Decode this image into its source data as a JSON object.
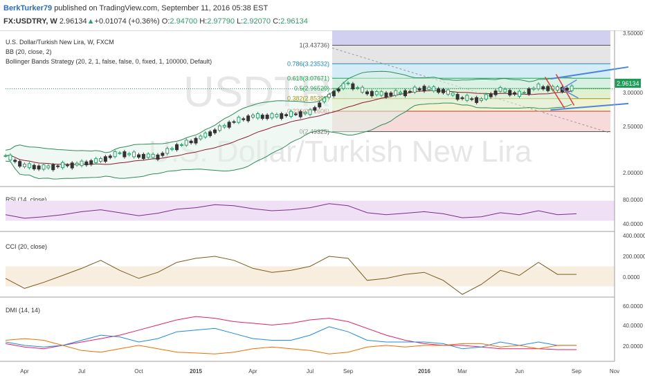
{
  "header": {
    "user": "BerkTurker79",
    "published": "published on TradingView.com, September 11, 2016 05:38 EST",
    "symbol": "FX:USDTRY, W",
    "last": "2.96134",
    "change_arrow": "▲",
    "change": "+0.01074 (+0.36%)",
    "o_label": "O:",
    "o_val": "2.94700",
    "h_label": "H:",
    "h_val": "2.97790",
    "l_label": "L:",
    "l_val": "2.92070",
    "c_label": "C:",
    "c_val": "2.96134"
  },
  "main": {
    "title": "U.S. Dollar/Turkish New Lira, W, FXCM",
    "ind1": "BB (20, close, 2)",
    "ind2": "Bollinger Bands Strategy (20, 2, 1, false, false, 0, fixed, 1, 100000, Default)",
    "watermark1": "USDTRY, W",
    "watermark2": "U.S. Dollar/Turkish New Lira",
    "price_tag": "2.96134",
    "yticks": [
      "3.50000",
      "3.00000",
      "2.50000",
      "2.00000"
    ],
    "fib": [
      {
        "label": "1(3.43736)",
        "color": "#555555"
      },
      {
        "label": "0.786(3.23532)",
        "color": "#1e88b4"
      },
      {
        "label": "0.618(3.07671)",
        "color": "#1ea64c"
      },
      {
        "label": "0.5(2.96520)",
        "color": "#1ea64c"
      },
      {
        "label": "0.382(2.85390)",
        "color": "#9a9a10"
      },
      {
        "label": "0.236(2.71606)",
        "color": "#c0392b"
      },
      {
        "label": "0(2.49325)",
        "color": "#555555"
      }
    ]
  },
  "rsi": {
    "title": "RSI (14, close)",
    "yticks": [
      "80.0000",
      "40.0000"
    ]
  },
  "cci": {
    "title": "CCI (20, close)",
    "yticks": [
      "400.0000",
      "200.0000",
      "0.0000"
    ]
  },
  "dmi": {
    "title": "DMI (14, 14)",
    "yticks": [
      "60.0000",
      "40.0000",
      "20.0000"
    ]
  },
  "xaxis": {
    "labels": [
      "Apr",
      "Jul",
      "Oct",
      "2015",
      "Apr",
      "Jul",
      "Sep",
      "2016",
      "Mar",
      "Jun",
      "Sep",
      "Nov"
    ]
  },
  "colors": {
    "bull": "#26a269",
    "bear": "#333333",
    "bb_upper": "#2e8b57",
    "bb_basis": "#8b1a2a",
    "rsi": "#7b2a8c",
    "cci": "#7a5a1e",
    "dmi_adx": "#e91e63",
    "dmi_plus": "#1e88e5",
    "dmi_minus": "#ef6c00"
  },
  "chart_data": {
    "type": "candlestick",
    "timeframe": "W",
    "x_range": [
      "2014-03",
      "2016-11"
    ],
    "ylim_price": [
      1.9,
      3.6
    ],
    "price_close_monthly": {
      "x": [
        "2014-03",
        "2014-04",
        "2014-05",
        "2014-06",
        "2014-07",
        "2014-08",
        "2014-09",
        "2014-10",
        "2014-11",
        "2014-12",
        "2015-01",
        "2015-02",
        "2015-03",
        "2015-04",
        "2015-05",
        "2015-06",
        "2015-07",
        "2015-08",
        "2015-09",
        "2015-10",
        "2015-11",
        "2015-12",
        "2016-01",
        "2016-02",
        "2016-03",
        "2016-04",
        "2016-05",
        "2016-06",
        "2016-07",
        "2016-08",
        "2016-09"
      ],
      "close": [
        2.23,
        2.12,
        2.1,
        2.12,
        2.14,
        2.18,
        2.26,
        2.23,
        2.22,
        2.33,
        2.4,
        2.5,
        2.6,
        2.66,
        2.66,
        2.68,
        2.7,
        2.88,
        3.02,
        2.92,
        2.9,
        2.92,
        2.97,
        2.94,
        2.86,
        2.84,
        2.95,
        2.9,
        2.98,
        2.96,
        2.96
      ]
    },
    "fibonacci": {
      "levels": [
        1,
        0.786,
        0.618,
        0.5,
        0.382,
        0.236,
        0
      ],
      "prices": [
        3.43736,
        3.23532,
        3.07671,
        2.9652,
        2.8539,
        2.71606,
        2.49325
      ]
    },
    "rsi": {
      "ylim": [
        20,
        100
      ],
      "band": [
        30,
        70
      ],
      "values": [
        52,
        45,
        48,
        52,
        58,
        62,
        56,
        50,
        55,
        63,
        66,
        72,
        70,
        64,
        60,
        62,
        66,
        74,
        70,
        56,
        52,
        55,
        58,
        54,
        46,
        48,
        56,
        52,
        60,
        52,
        54
      ]
    },
    "cci": {
      "ylim": [
        -200,
        400
      ],
      "band": [
        -100,
        100
      ],
      "values": [
        -20,
        -120,
        -60,
        10,
        80,
        160,
        60,
        -20,
        40,
        140,
        180,
        200,
        160,
        80,
        40,
        60,
        100,
        200,
        180,
        -40,
        -20,
        20,
        40,
        -40,
        -180,
        -80,
        60,
        10,
        140,
        20,
        20
      ]
    },
    "dmi": {
      "ylim": [
        0,
        70
      ],
      "adx": [
        20,
        16,
        14,
        18,
        22,
        26,
        30,
        36,
        42,
        48,
        52,
        50,
        46,
        44,
        42,
        44,
        48,
        50,
        46,
        38,
        30,
        24,
        20,
        18,
        18,
        16,
        14,
        14,
        14,
        13,
        13
      ],
      "plus_di": [
        22,
        18,
        16,
        18,
        24,
        30,
        28,
        22,
        26,
        34,
        36,
        38,
        32,
        26,
        24,
        24,
        30,
        40,
        34,
        24,
        22,
        22,
        22,
        20,
        14,
        16,
        22,
        18,
        22,
        18,
        18
      ],
      "minus_di": [
        24,
        26,
        24,
        18,
        12,
        10,
        14,
        18,
        14,
        10,
        9,
        8,
        10,
        14,
        16,
        14,
        12,
        8,
        10,
        16,
        18,
        16,
        18,
        18,
        20,
        20,
        16,
        18,
        14,
        18,
        18
      ]
    }
  }
}
